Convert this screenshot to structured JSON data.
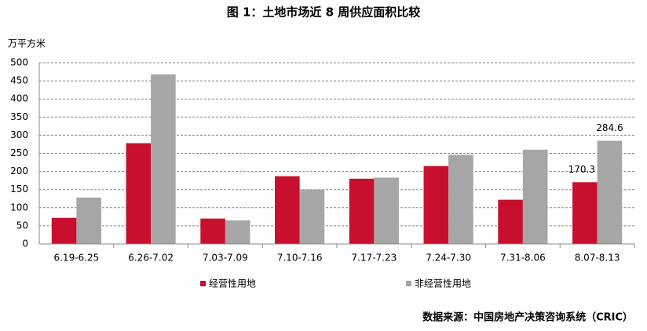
{
  "chart_data": {
    "type": "bar",
    "title": "图 1：土地市场近 8 周供应面积比较",
    "y_label": "万平方米",
    "categories": [
      "6.19-6.25",
      "6.26-7.02",
      "7.03-7.09",
      "7.10-7.16",
      "7.17-7.23",
      "7.24-7.30",
      "7.31-8.06",
      "8.07-8.13"
    ],
    "series": [
      {
        "name": "经营性用地",
        "color": "#c8102e",
        "values": [
          72,
          278,
          70,
          187,
          180,
          215,
          122,
          170.3
        ],
        "value_labels": [
          null,
          null,
          null,
          null,
          null,
          null,
          null,
          "170.3"
        ]
      },
      {
        "name": "非经营性用地",
        "color": "#a6a6a6",
        "values": [
          128,
          468,
          65,
          150,
          183,
          246,
          260,
          284.6
        ],
        "value_labels": [
          null,
          null,
          null,
          null,
          null,
          null,
          null,
          "284.6"
        ]
      }
    ],
    "ylim": [
      0,
      500
    ],
    "yticks": [
      0,
      50,
      100,
      150,
      200,
      250,
      300,
      350,
      400,
      450,
      500
    ],
    "grid": true,
    "source": "数据来源：中国房地产决策咨询系统（CRIC）"
  }
}
